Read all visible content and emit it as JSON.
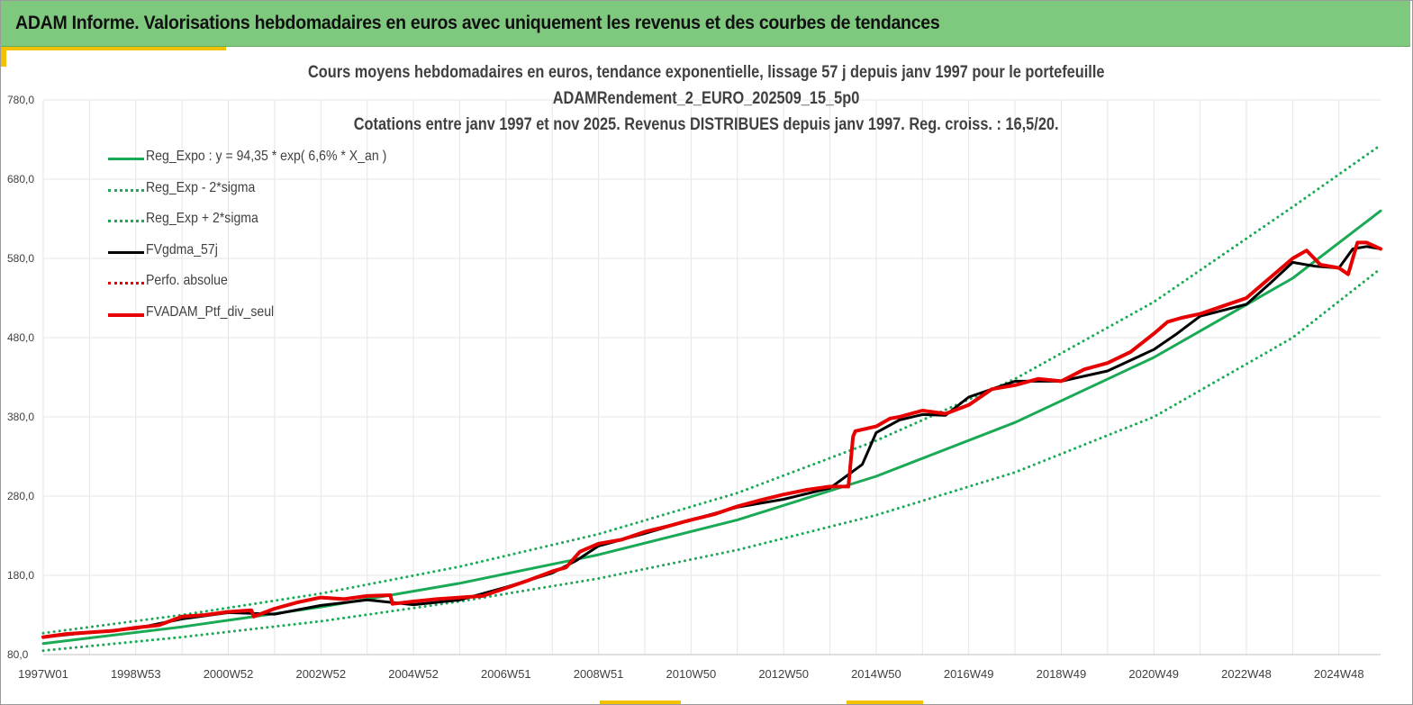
{
  "header": {
    "title": "ADAM Informe. Valorisations hebdomadaires en euros avec uniquement les revenus et des courbes de tendances"
  },
  "colors": {
    "header_bg": "#7fc97f",
    "accent": "#f2c200",
    "trend": "#1aaa55",
    "smoothed": "#000000",
    "perf": "#e60000",
    "grid": "#e6e6e6"
  },
  "chart_data": {
    "type": "line",
    "title_lines": [
      "Cours moyens hebdomadaires  en euros, tendance exponentielle, lissage 57 j depuis janv 1997 pour le portefeuille",
      "ADAMRendement_2_EURO_202509_15_5p0",
      "Cotations  entre janv 1997 et nov 2025. Revenus DISTRIBUES depuis janv 1997. Reg. croiss. : 16,5/20."
    ],
    "x_axis": {
      "tick_labels": [
        "1997W01",
        "1998W53",
        "2000W52",
        "2002W52",
        "2004W52",
        "2006W51",
        "2008W51",
        "2010W50",
        "2012W50",
        "2014W50",
        "2016W49",
        "2018W49",
        "2020W49",
        "2022W48",
        "2024W48"
      ],
      "tick_years": [
        1997.0,
        1999.0,
        2001.0,
        2003.0,
        2005.0,
        2007.0,
        2009.0,
        2011.0,
        2013.0,
        2015.0,
        2017.0,
        2019.0,
        2021.0,
        2023.0,
        2025.0
      ],
      "range": [
        1997.0,
        2025.9
      ]
    },
    "y_axis": {
      "tick_labels": [
        "80,0",
        "180,0",
        "280,0",
        "380,0",
        "480,0",
        "580,0",
        "680,0",
        "780,0"
      ],
      "tick_values": [
        80,
        180,
        280,
        380,
        480,
        580,
        680,
        780
      ],
      "range": [
        80,
        780
      ]
    },
    "grid": true,
    "legend_position": "top-left",
    "legend": [
      {
        "key": "reg_expo",
        "label": "Reg_Expo : y = 94,35 * exp( 6,6% *  X_an )",
        "color": "#1aaa55",
        "dash": "solid",
        "width": 3
      },
      {
        "key": "reg_minus",
        "label": "Reg_Exp - 2*sigma",
        "color": "#1aaa55",
        "dash": "dotted",
        "width": 3
      },
      {
        "key": "reg_plus",
        "label": "Reg_Exp + 2*sigma",
        "color": "#1aaa55",
        "dash": "dotted",
        "width": 3
      },
      {
        "key": "fvgdma",
        "label": "FVgdma_57j",
        "color": "#000000",
        "dash": "solid",
        "width": 3
      },
      {
        "key": "perf_abs",
        "label": "Perfo. absolue",
        "color": "#e60000",
        "dash": "dotted",
        "width": 3
      },
      {
        "key": "fvadam",
        "label": "FVADAM_Ptf_div_seul",
        "color": "#e60000",
        "dash": "solid",
        "width": 4
      }
    ],
    "series": [
      {
        "key": "reg_expo",
        "name": "Reg_Expo : y = 94,35 * exp( 6,6% *  X_an )",
        "x": [
          1997.0,
          2000.0,
          2003.0,
          2006.0,
          2009.0,
          2012.0,
          2015.0,
          2018.0,
          2021.0,
          2024.0,
          2025.9
        ],
        "y": [
          94,
          115,
          140,
          170,
          206,
          250,
          305,
          373,
          455,
          555,
          640
        ]
      },
      {
        "key": "reg_minus",
        "name": "Reg_Exp - 2*sigma",
        "x": [
          1997.0,
          2000.0,
          2003.0,
          2006.0,
          2009.0,
          2012.0,
          2015.0,
          2018.0,
          2021.0,
          2024.0,
          2025.9
        ],
        "y": [
          85,
          102,
          122,
          147,
          176,
          212,
          256,
          310,
          380,
          480,
          567
        ]
      },
      {
        "key": "reg_plus",
        "name": "Reg_Exp + 2*sigma",
        "x": [
          1997.0,
          2000.0,
          2003.0,
          2006.0,
          2009.0,
          2012.0,
          2015.0,
          2018.0,
          2021.0,
          2024.0,
          2025.9
        ],
        "y": [
          107,
          130,
          157,
          191,
          232,
          284,
          350,
          428,
          525,
          645,
          723
        ]
      },
      {
        "key": "fvgdma",
        "name": "FVgdma_57j",
        "x": [
          1997.0,
          1998.0,
          1999.0,
          2000.0,
          2001.0,
          2002.0,
          2003.0,
          2004.0,
          2005.0,
          2006.0,
          2007.0,
          2008.0,
          2008.5,
          2009.0,
          2010.0,
          2011.0,
          2012.0,
          2013.0,
          2014.0,
          2014.7,
          2015.0,
          2015.5,
          2016.0,
          2016.5,
          2017.0,
          2018.0,
          2019.0,
          2020.0,
          2021.0,
          2021.5,
          2022.0,
          2023.0,
          2023.5,
          2024.0,
          2024.5,
          2025.0,
          2025.3,
          2025.6,
          2025.9
        ],
        "y": [
          102,
          108,
          113,
          125,
          133,
          131,
          142,
          149,
          143,
          149,
          165,
          183,
          198,
          217,
          233,
          250,
          266,
          276,
          290,
          320,
          360,
          376,
          383,
          382,
          405,
          425,
          425,
          438,
          465,
          485,
          507,
          522,
          548,
          575,
          570,
          568,
          592,
          595,
          592
        ]
      },
      {
        "key": "perf_abs",
        "name": "Perfo. absolue",
        "x": [
          1997.0,
          2025.9
        ],
        "y": [
          102,
          592
        ]
      },
      {
        "key": "fvadam",
        "name": "FVADAM_Ptf_div_seul",
        "x": [
          1997.0,
          1997.5,
          1998.0,
          1998.5,
          1999.0,
          1999.5,
          2000.0,
          2000.5,
          2001.0,
          2001.5,
          2001.55,
          2002.0,
          2002.5,
          2003.0,
          2003.5,
          2004.0,
          2004.5,
          2004.55,
          2005.0,
          2005.5,
          2006.0,
          2006.5,
          2007.0,
          2007.5,
          2008.0,
          2008.3,
          2008.6,
          2009.0,
          2009.5,
          2010.0,
          2010.5,
          2011.0,
          2011.5,
          2012.0,
          2012.5,
          2013.0,
          2013.5,
          2014.0,
          2014.4,
          2014.5,
          2014.55,
          2015.0,
          2015.3,
          2015.5,
          2016.0,
          2016.5,
          2017.0,
          2017.5,
          2018.0,
          2018.5,
          2019.0,
          2019.5,
          2020.0,
          2020.5,
          2021.0,
          2021.3,
          2021.6,
          2022.0,
          2022.5,
          2023.0,
          2023.3,
          2023.6,
          2024.0,
          2024.3,
          2024.6,
          2025.0,
          2025.2,
          2025.4,
          2025.6,
          2025.9
        ],
        "y": [
          102,
          106,
          108,
          110,
          114,
          117,
          128,
          130,
          134,
          136,
          128,
          138,
          146,
          152,
          150,
          154,
          155,
          144,
          147,
          150,
          152,
          154,
          164,
          174,
          185,
          190,
          210,
          220,
          225,
          235,
          242,
          250,
          257,
          267,
          275,
          282,
          288,
          292,
          292,
          355,
          362,
          368,
          378,
          380,
          388,
          384,
          395,
          415,
          420,
          428,
          425,
          440,
          448,
          462,
          485,
          500,
          505,
          510,
          520,
          530,
          545,
          560,
          580,
          590,
          572,
          568,
          560,
          600,
          600,
          592
        ]
      }
    ]
  }
}
